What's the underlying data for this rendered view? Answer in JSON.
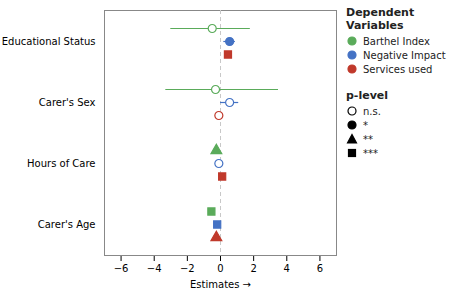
{
  "chart_data": {
    "type": "scatter",
    "categories": [
      "Carer's Age",
      "Hours of Care",
      "Carer's Sex",
      "Educational Status"
    ],
    "xlabel": "Estimates",
    "xlim": [
      -7,
      7
    ],
    "xticks": [
      -6,
      -4,
      -2,
      0,
      2,
      4,
      6
    ],
    "vline_x": 0,
    "grid": false,
    "legend": "right",
    "legend_title": "Dependent Variables",
    "series": [
      {
        "name": "Barthel Index",
        "color": "#5aab5a",
        "values": [
          -0.55,
          -0.25,
          -0.3,
          -0.5
        ],
        "ci_lo": [
          null,
          null,
          -3.3,
          -3.0
        ],
        "ci_hi": [
          null,
          null,
          3.5,
          1.8
        ],
        "p_levels": [
          "***",
          "**",
          "n.s.",
          "n.s."
        ]
      },
      {
        "name": "Negative Impact",
        "color": "#4472c4",
        "values": [
          -0.2,
          -0.1,
          0.55,
          0.55
        ],
        "ci_lo": [
          null,
          null,
          0.0,
          0.2
        ],
        "ci_hi": [
          null,
          null,
          1.1,
          0.9
        ],
        "p_levels": [
          "***",
          "n.s.",
          "n.s.",
          "*"
        ]
      },
      {
        "name": "Services used",
        "color": "#c0392b",
        "values": [
          -0.25,
          0.1,
          -0.1,
          0.45
        ],
        "ci_lo": [
          null,
          null,
          null,
          null
        ],
        "ci_hi": [
          null,
          null,
          null,
          null
        ],
        "p_levels": [
          "**",
          "***",
          "n.s.",
          "***"
        ]
      }
    ],
    "p_legend": {
      "title": "p-level",
      "items": [
        {
          "label": "n.s.",
          "marker": "circle",
          "filled": false
        },
        {
          "label": "*",
          "marker": "circle",
          "filled": true
        },
        {
          "label": "**",
          "marker": "triangle",
          "filled": true
        },
        {
          "label": "***",
          "marker": "square",
          "filled": true
        }
      ]
    }
  }
}
